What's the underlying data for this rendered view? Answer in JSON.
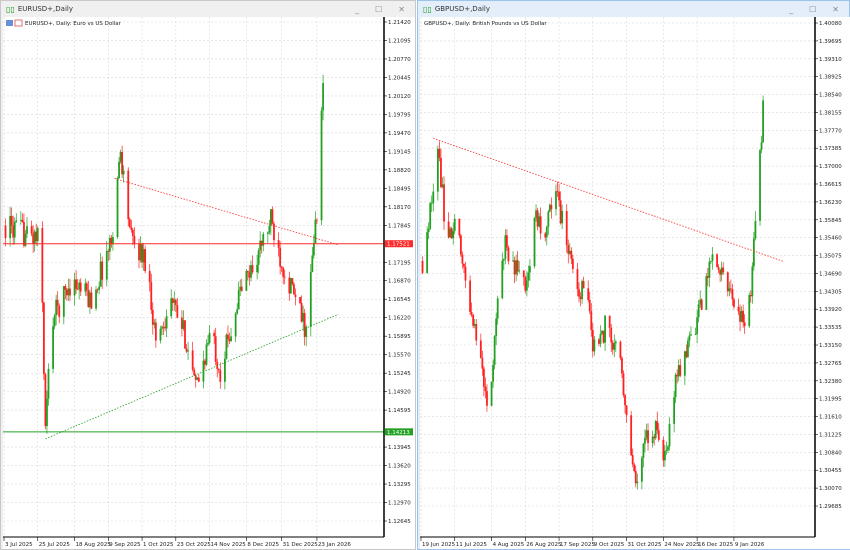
{
  "windows": [
    {
      "title": "EURUSD+,Daily",
      "subtitle": "EURUSD+, Daily:  Euro vs US Dollar",
      "active": false,
      "controls": {
        "minimize": "_",
        "maximize": "☐",
        "close": "✕"
      },
      "chart_data": {
        "type": "candlestick",
        "symbol": "EURUSD+",
        "timeframe": "Daily",
        "y_ticks": [
          "1.21420",
          "1.21095",
          "1.20770",
          "1.20445",
          "1.20120",
          "1.19795",
          "1.19470",
          "1.19145",
          "1.18820",
          "1.18495",
          "1.18170",
          "1.17845",
          "1.17195",
          "1.16870",
          "1.16545",
          "1.16220",
          "1.15895",
          "1.15570",
          "1.15245",
          "1.14920",
          "1.14595",
          "1.13945",
          "1.13620",
          "1.13295",
          "1.12970",
          "1.12645"
        ],
        "ylim": [
          1.12645,
          1.2142
        ],
        "x_ticks": [
          "3 Jul 2025",
          "25 Jul 2025",
          "18 Aug 2025",
          "9 Sep 2025",
          "1 Oct 2025",
          "23 Oct 2025",
          "14 Nov 2025",
          "8 Dec 2025",
          "31 Dec 2025",
          "23 Jan 2026"
        ],
        "x_tick_dates": [
          "2025-07-03",
          "2025-07-25",
          "2025-08-18",
          "2025-09-09",
          "2025-10-01",
          "2025-10-23",
          "2025-11-14",
          "2025-12-08",
          "2025-12-31",
          "2026-01-23"
        ],
        "close_path": [
          [
            "2025-07-04",
            1.1784
          ],
          [
            "2025-07-27",
            1.1758
          ],
          [
            "2025-07-30",
            1.1424
          ],
          [
            "2025-08-03",
            1.1617
          ],
          [
            "2025-08-16",
            1.1687
          ],
          [
            "2025-08-29",
            1.1652
          ],
          [
            "2025-09-11",
            1.1758
          ],
          [
            "2025-09-17",
            1.1916
          ],
          [
            "2025-09-24",
            1.1758
          ],
          [
            "2025-10-04",
            1.1722
          ],
          [
            "2025-10-10",
            1.1582
          ],
          [
            "2025-10-20",
            1.1652
          ],
          [
            "2025-10-30",
            1.1582
          ],
          [
            "2025-11-05",
            1.1494
          ],
          [
            "2025-11-15",
            1.1599
          ],
          [
            "2025-11-21",
            1.1529
          ],
          [
            "2025-12-04",
            1.167
          ],
          [
            "2025-12-14",
            1.1722
          ],
          [
            "2025-12-24",
            1.1792
          ],
          [
            "2025-12-31",
            1.1722
          ],
          [
            "2026-01-09",
            1.1652
          ],
          [
            "2026-01-16",
            1.1599
          ],
          [
            "2026-01-20",
            1.1722
          ],
          [
            "2026-01-24",
            1.1845
          ],
          [
            "2026-01-27",
            1.203
          ]
        ],
        "hlines": [
          {
            "price": "1.17521",
            "value": 1.17521,
            "color": "#ff2a2a"
          },
          {
            "price": "1.14213",
            "value": 1.14213,
            "color": "#22a022"
          }
        ],
        "trendlines": [
          {
            "from": [
              "2025-09-13",
              1.1867
            ],
            "to": [
              "2026-02-06",
              1.175
            ],
            "color": "#ff2a2a"
          },
          {
            "from": [
              "2025-07-30",
              1.1409
            ],
            "to": [
              "2026-02-06",
              1.1628
            ],
            "color": "#22a022"
          }
        ],
        "colors": {
          "bull": "#22a022",
          "bear": "#ff2020"
        }
      }
    },
    {
      "title": "GBPUSD+,Daily",
      "subtitle": "GBPUSD+, Daily:  British Pounds vs US Dollar",
      "active": true,
      "controls": {
        "minimize": "_",
        "maximize": "☐",
        "close": "✕"
      },
      "chart_data": {
        "type": "candlestick",
        "symbol": "GBPUSD+",
        "timeframe": "Daily",
        "y_ticks": [
          "1.40080",
          "1.39695",
          "1.39310",
          "1.38925",
          "1.38540",
          "1.38155",
          "1.37770",
          "1.37385",
          "1.37000",
          "1.36615",
          "1.36230",
          "1.35845",
          "1.35460",
          "1.35075",
          "1.34690",
          "1.34305",
          "1.33920",
          "1.33535",
          "1.33150",
          "1.32765",
          "1.32380",
          "1.31995",
          "1.31610",
          "1.31225",
          "1.30840",
          "1.30455",
          "1.30070",
          "1.29685"
        ],
        "ylim": [
          1.29685,
          1.4008
        ],
        "x_ticks": [
          "19 Jun 2025",
          "11 Jul 2025",
          "4 Aug 2025",
          "26 Aug 2025",
          "17 Sep 2025",
          "9 Oct 2025",
          "31 Oct 2025",
          "24 Nov 2025",
          "16 Dec 2025",
          "9 Jan 2026"
        ],
        "x_tick_dates": [
          "2025-06-19",
          "2025-07-11",
          "2025-08-04",
          "2025-08-26",
          "2025-09-17",
          "2025-10-09",
          "2025-10-31",
          "2025-11-24",
          "2025-12-16",
          "2026-01-09"
        ],
        "close_path": [
          [
            "2025-06-20",
            1.3496
          ],
          [
            "2025-06-26",
            1.3625
          ],
          [
            "2025-06-30",
            1.3754
          ],
          [
            "2025-07-05",
            1.3561
          ],
          [
            "2025-07-12",
            1.3561
          ],
          [
            "2025-07-18",
            1.3453
          ],
          [
            "2025-07-25",
            1.3346
          ],
          [
            "2025-08-02",
            1.3152
          ],
          [
            "2025-08-07",
            1.3367
          ],
          [
            "2025-08-13",
            1.3539
          ],
          [
            "2025-08-20",
            1.3475
          ],
          [
            "2025-08-26",
            1.3453
          ],
          [
            "2025-09-02",
            1.3582
          ],
          [
            "2025-09-08",
            1.3561
          ],
          [
            "2025-09-15",
            1.3647
          ],
          [
            "2025-09-22",
            1.3539
          ],
          [
            "2025-09-28",
            1.3453
          ],
          [
            "2025-10-05",
            1.341
          ],
          [
            "2025-10-11",
            1.3281
          ],
          [
            "2025-10-18",
            1.3367
          ],
          [
            "2025-10-27",
            1.3281
          ],
          [
            "2025-11-02",
            1.3131
          ],
          [
            "2025-11-06",
            1.3001
          ],
          [
            "2025-11-13",
            1.3109
          ],
          [
            "2025-11-19",
            1.3131
          ],
          [
            "2025-11-26",
            1.3066
          ],
          [
            "2025-12-02",
            1.3238
          ],
          [
            "2025-12-12",
            1.3324
          ],
          [
            "2025-12-19",
            1.341
          ],
          [
            "2025-12-25",
            1.3496
          ],
          [
            "2026-01-01",
            1.3475
          ],
          [
            "2026-01-07",
            1.3432
          ],
          [
            "2026-01-14",
            1.3367
          ],
          [
            "2026-01-17",
            1.3324
          ],
          [
            "2026-01-21",
            1.3475
          ],
          [
            "2026-01-25",
            1.3668
          ],
          [
            "2026-01-28",
            1.3819
          ]
        ],
        "hlines": [],
        "trendlines": [
          {
            "from": [
              "2025-06-27",
              1.376
            ],
            "to": [
              "2026-02-10",
              1.3495
            ],
            "color": "#ff2a2a"
          }
        ],
        "colors": {
          "bull": "#22a022",
          "bear": "#ff2020"
        }
      }
    }
  ]
}
